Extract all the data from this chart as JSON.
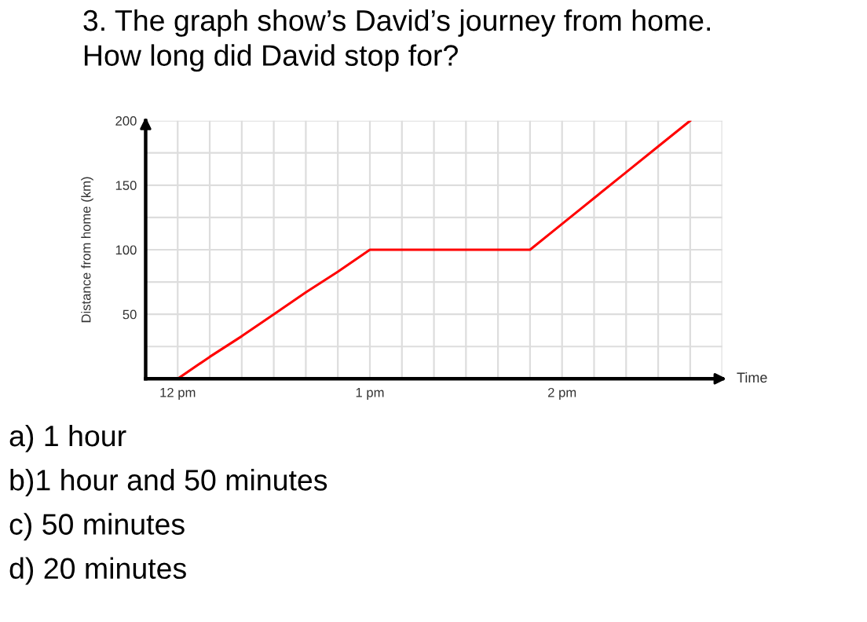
{
  "chart_data": {
    "type": "line",
    "title": "3. The graph show’s David’s journey from home.\nHow long did David stop for?",
    "xlabel": "Time",
    "ylabel": "Distance from home (km)",
    "categories": [
      "12 pm",
      null,
      null,
      null,
      null,
      null,
      "1 pm",
      null,
      null,
      null,
      null,
      null,
      "2 pm",
      null,
      null,
      null,
      null,
      null
    ],
    "series": [
      {
        "color": "#ff0000",
        "values": [
          0,
          17,
          33,
          50,
          67,
          83,
          100,
          100,
          100,
          100,
          100,
          100,
          120,
          140,
          160,
          180,
          200,
          null
        ]
      }
    ],
    "ylim": [
      0,
      200
    ],
    "yticks": [
      {
        "value": 25,
        "label": null
      },
      50,
      {
        "value": 75,
        "label": null
      },
      100,
      {
        "value": 125,
        "label": null
      },
      150,
      {
        "value": 175,
        "label": null
      },
      200
    ],
    "grid": true,
    "marker": "none",
    "line_style": "solid",
    "annotations": [
      "a) 1 hour",
      "b)1 hour and 50 minutes",
      "c) 50 minutes",
      "d) 20 minutes"
    ]
  }
}
